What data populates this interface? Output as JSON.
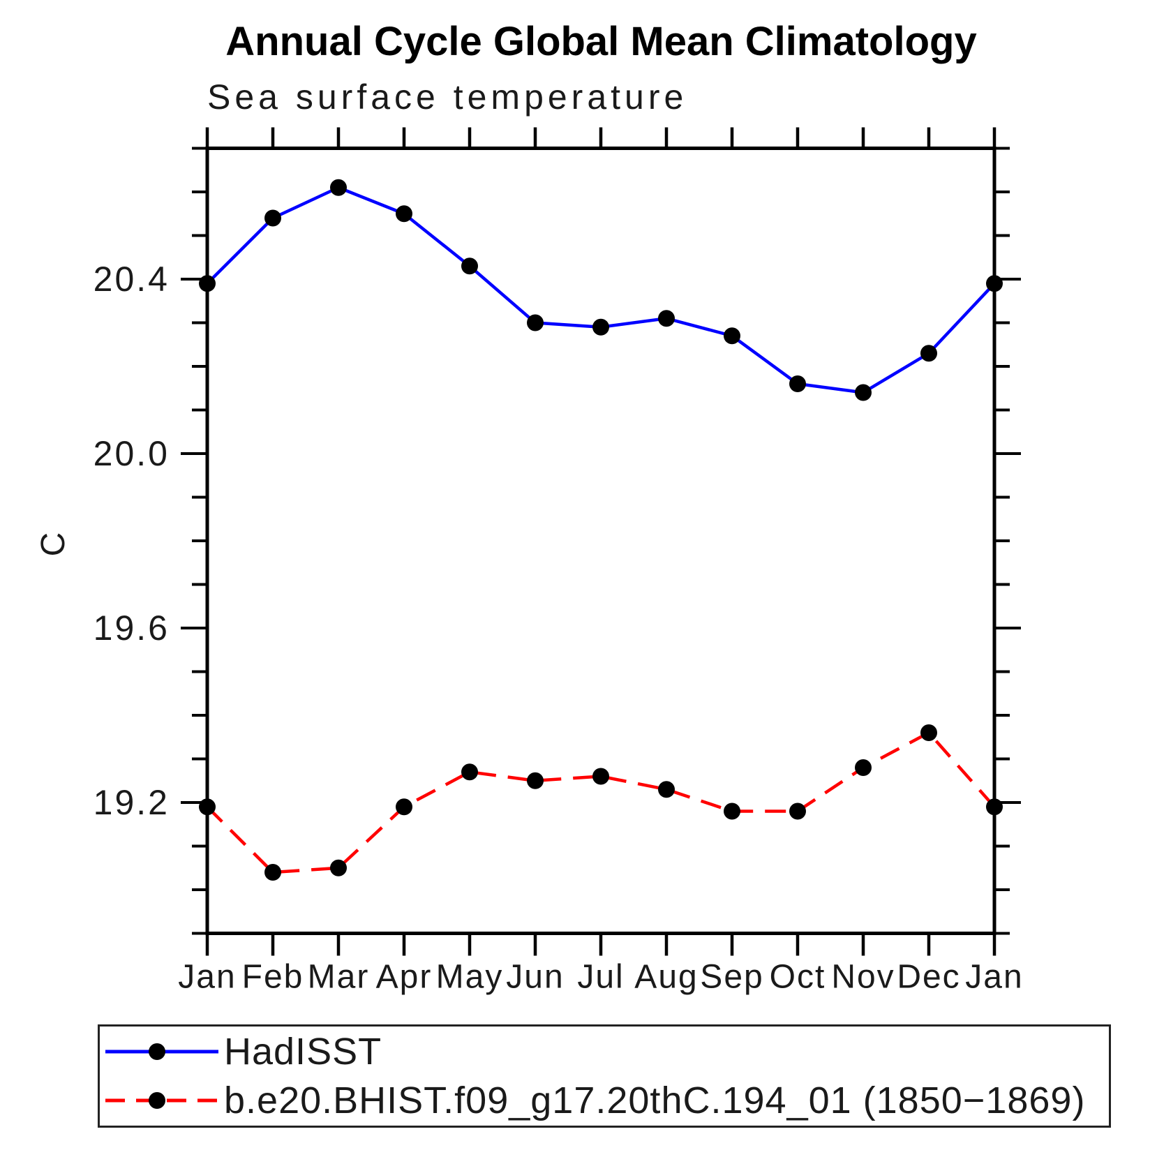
{
  "title": "Annual Cycle Global Mean Climatology",
  "subtitle": "Sea surface temperature",
  "legend": {
    "items": [
      {
        "label": "HadISST"
      },
      {
        "label": "b.e20.BHIST.f09_g17.20thC.194_01 (1850−1869)"
      }
    ]
  },
  "chart_data": {
    "type": "line",
    "title": "Annual Cycle Global Mean Climatology",
    "subtitle": "Sea surface temperature",
    "xlabel": "",
    "ylabel": "C",
    "categories": [
      "Jan",
      "Feb",
      "Mar",
      "Apr",
      "May",
      "Jun",
      "Jul",
      "Aug",
      "Sep",
      "Oct",
      "Nov",
      "Dec",
      "Jan"
    ],
    "ylim": [
      18.9,
      20.7
    ],
    "ytick_labeled": [
      20.4,
      20.0,
      19.6,
      19.2
    ],
    "ytick_minor_step": 0.1,
    "grid": false,
    "legend_position": "bottom-left",
    "marker": {
      "shape": "circle",
      "color": "#000000"
    },
    "series": [
      {
        "name": "HadISST",
        "color": "#0000ff",
        "dashed": false,
        "values": [
          20.39,
          20.54,
          20.61,
          20.55,
          20.43,
          20.3,
          20.29,
          20.31,
          20.27,
          20.16,
          20.14,
          20.23,
          20.39
        ]
      },
      {
        "name": "b.e20.BHIST.f09_g17.20thC.194_01 (1850−1869)",
        "color": "#ff0000",
        "dashed": true,
        "values": [
          19.19,
          19.04,
          19.05,
          19.19,
          19.27,
          19.25,
          19.26,
          19.23,
          19.18,
          19.18,
          19.28,
          19.36,
          19.19
        ]
      }
    ]
  }
}
